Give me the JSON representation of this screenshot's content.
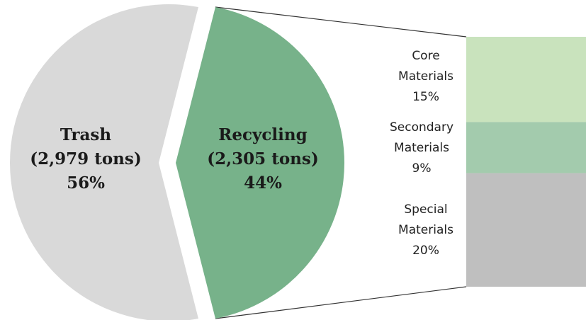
{
  "chart_data": {
    "type": "pie",
    "title": "",
    "slices": [
      {
        "category": "Trash",
        "tons_label": "(2,979 tons)",
        "percent_label": "56%",
        "value": 56,
        "tons": 2979,
        "color": "#d9d9d9"
      },
      {
        "category": "Recycling",
        "tons_label": "(2,305 tons)",
        "percent_label": "44%",
        "value": 44,
        "tons": 2305,
        "color": "#77b28a"
      }
    ],
    "breakdown": {
      "type": "stacked-bar",
      "of_slice": "Recycling",
      "segments": [
        {
          "line1": "Core",
          "line2": "Materials",
          "percent_label": "15%",
          "value": 15,
          "color": "#c9e3bd"
        },
        {
          "line1": "Secondary",
          "line2": "Materials",
          "percent_label": "9%",
          "value": 9,
          "color": "#a3cbad"
        },
        {
          "line1": "Special",
          "line2": "Materials",
          "percent_label": "20%",
          "value": 20,
          "color": "#bfbfbf"
        }
      ]
    }
  }
}
